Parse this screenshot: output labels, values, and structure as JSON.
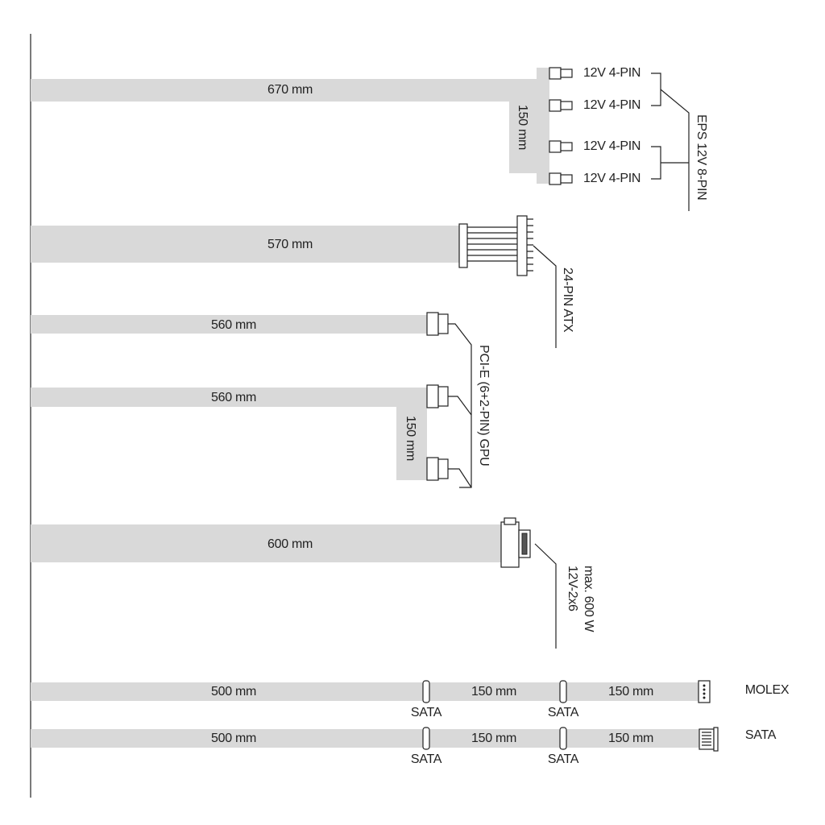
{
  "eps": {
    "length": "670 mm",
    "connectors": [
      "12V 4-PIN",
      "12V 4-PIN",
      "12V 4-PIN",
      "12V 4-PIN"
    ],
    "extension": "150 mm",
    "label": "EPS 12V 8-PIN"
  },
  "atx": {
    "length": "570 mm",
    "label": "24-PIN ATX"
  },
  "pcie": {
    "lengths": [
      "560 mm",
      "560 mm"
    ],
    "extension": "150 mm",
    "label": "PCI-E (6+2-PIN) GPU"
  },
  "hpwr": {
    "length": "600 mm",
    "label": [
      "12V-2x6",
      "max. 600 W"
    ]
  },
  "molex_chain": {
    "segments": [
      "500 mm",
      "150 mm",
      "150 mm"
    ],
    "taps": [
      "SATA",
      "SATA"
    ],
    "end": "MOLEX"
  },
  "sata_chain": {
    "segments": [
      "500 mm",
      "150 mm",
      "150 mm"
    ],
    "taps": [
      "SATA",
      "SATA"
    ],
    "end": "SATA"
  }
}
